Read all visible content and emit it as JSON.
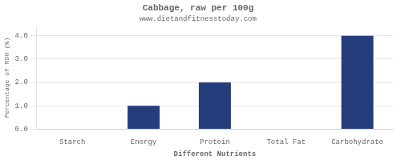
{
  "chart_data": {
    "type": "bar",
    "title": "Cabbage, raw per 100g",
    "subtitle": "www.dietandfitnesstoday.com",
    "categories": [
      "Starch",
      "Energy",
      "Protein",
      "Total Fat",
      "Carbohydrate"
    ],
    "values": [
      0.0,
      1.0,
      2.0,
      0.0,
      4.0
    ],
    "color": "#253d7a",
    "xlabel": "Different Nutrients",
    "ylabel": "Percentage of RDH (%)",
    "ylim": [
      0,
      4.4
    ],
    "yticks": [
      {
        "value": 0.0,
        "label": "0.0"
      },
      {
        "value": 1.0,
        "label": "1.0"
      },
      {
        "value": 2.0,
        "label": "2.0"
      },
      {
        "value": 3.0,
        "label": "3.0"
      },
      {
        "value": 4.0,
        "label": "4.0"
      }
    ],
    "grid": true
  }
}
